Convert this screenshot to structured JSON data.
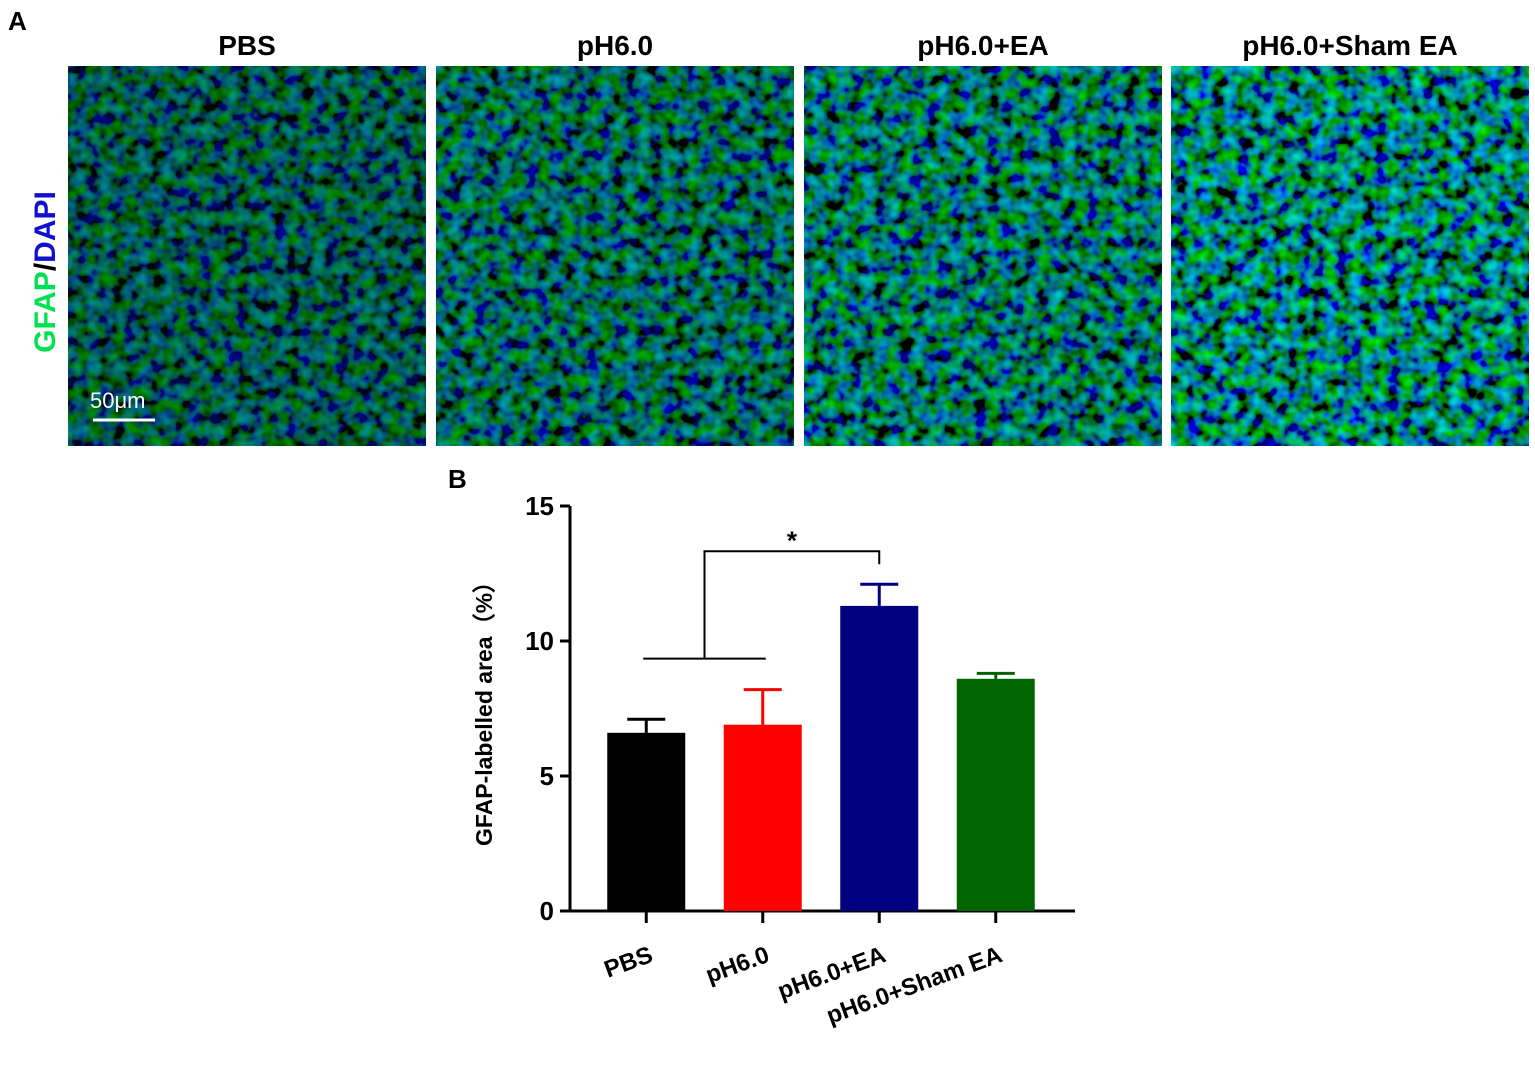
{
  "panel_a": {
    "label": "A",
    "stain": [
      "GFAP",
      "/",
      "DAPI"
    ],
    "scale_bar": "50μm",
    "titles": [
      "PBS",
      "pH6.0",
      "pH6.0+EA",
      "pH6.0+Sham EA"
    ]
  },
  "chart_data": {
    "type": "bar",
    "panel_label": "B",
    "ylabel": "GFAP-labelled area（%）",
    "categories": [
      "PBS",
      "pH6.0",
      "pH6.0+EA",
      "pH6.0+Sham EA"
    ],
    "values": [
      6.6,
      6.9,
      11.3,
      8.6
    ],
    "errors": [
      0.5,
      1.3,
      0.8,
      0.2
    ],
    "colors": [
      "#000000",
      "#ff0000",
      "#000080",
      "#006400"
    ],
    "ylim": [
      0,
      15
    ],
    "yticks": [
      0,
      5,
      10,
      15
    ],
    "annotation": "*"
  }
}
